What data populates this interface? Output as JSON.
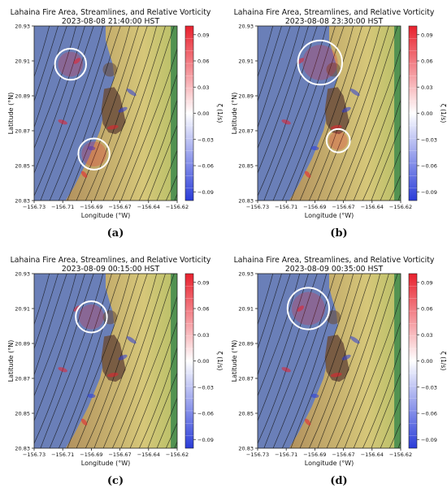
{
  "chart_data": [
    {
      "type": "heatmap",
      "label": "(a)",
      "title": "Lahaina Fire Area, Streamlines, and Relative Vorticity",
      "subtitle": "2023-08-08 21:40:00 HST",
      "xlabel": "Longitude (°W)",
      "ylabel": "Latitude (°N)",
      "colorbar_label": "ζ (1/s)",
      "xticks": [
        "−156.73",
        "−156.71",
        "−156.69",
        "−156.67",
        "−156.64",
        "−156.62"
      ],
      "yticks": [
        "20.93",
        "20.91",
        "20.89",
        "20.87",
        "20.85",
        "20.83"
      ],
      "colorbar_ticks": [
        "0.09",
        "0.06",
        "0.03",
        "0.00",
        "−0.03",
        "−0.06",
        "−0.09"
      ],
      "xlim": [
        -156.73,
        -156.62
      ],
      "ylim": [
        20.83,
        20.935
      ],
      "clim": [
        -0.1,
        0.1
      ],
      "highlight_circles": [
        {
          "lon": -156.702,
          "lat": 20.912,
          "r_lon": 0.012
        },
        {
          "lon": -156.684,
          "lat": 20.858,
          "r_lon": 0.012
        }
      ]
    },
    {
      "type": "heatmap",
      "label": "(b)",
      "title": "Lahaina Fire Area, Streamlines, and Relative Vorticity",
      "subtitle": "2023-08-08 23:30:00 HST",
      "xlabel": "Longitude (°W)",
      "ylabel": "Latitude (°N)",
      "colorbar_label": "ζ (1/s)",
      "xticks": [
        "−156.73",
        "−156.71",
        "−156.69",
        "−156.67",
        "−156.64",
        "−156.62"
      ],
      "yticks": [
        "20.93",
        "20.91",
        "20.89",
        "20.87",
        "20.85",
        "20.83"
      ],
      "colorbar_ticks": [
        "0.09",
        "0.06",
        "0.03",
        "0.00",
        "−0.03",
        "−0.06",
        "−0.09"
      ],
      "xlim": [
        -156.73,
        -156.62
      ],
      "ylim": [
        20.83,
        20.935
      ],
      "clim": [
        -0.1,
        0.1
      ],
      "highlight_circles": [
        {
          "lon": -156.682,
          "lat": 20.913,
          "r_lon": 0.017
        },
        {
          "lon": -156.668,
          "lat": 20.866,
          "r_lon": 0.009
        }
      ]
    },
    {
      "type": "heatmap",
      "label": "(c)",
      "title": "Lahaina Fire Area, Streamlines, and Relative Vorticity",
      "subtitle": "2023-08-09 00:15:00 HST",
      "xlabel": "Longitude (°W)",
      "ylabel": "Latitude (°N)",
      "colorbar_label": "ζ (1/s)",
      "xticks": [
        "−156.73",
        "−156.71",
        "−156.69",
        "−156.67",
        "−156.64",
        "−156.62"
      ],
      "yticks": [
        "20.93",
        "20.91",
        "20.89",
        "20.87",
        "20.85",
        "20.83"
      ],
      "colorbar_ticks": [
        "0.09",
        "0.06",
        "0.03",
        "0.00",
        "−0.03",
        "−0.06",
        "−0.09"
      ],
      "xlim": [
        -156.73,
        -156.62
      ],
      "ylim": [
        20.83,
        20.935
      ],
      "clim": [
        -0.1,
        0.1
      ],
      "highlight_circles": [
        {
          "lon": -156.686,
          "lat": 20.909,
          "r_lon": 0.012
        }
      ]
    },
    {
      "type": "heatmap",
      "label": "(d)",
      "title": "Lahaina Fire Area, Streamlines, and Relative Vorticity",
      "subtitle": "2023-08-09 00:35:00 HST",
      "xlabel": "Longitude (°W)",
      "ylabel": "Latitude (°N)",
      "colorbar_label": "ζ (1/s)",
      "xticks": [
        "−156.73",
        "−156.71",
        "−156.69",
        "−156.67",
        "−156.64",
        "−156.62"
      ],
      "yticks": [
        "20.93",
        "20.91",
        "20.89",
        "20.87",
        "20.85",
        "20.83"
      ],
      "colorbar_ticks": [
        "0.09",
        "0.06",
        "0.03",
        "0.00",
        "−0.03",
        "−0.06",
        "−0.09"
      ],
      "xlim": [
        -156.73,
        -156.62
      ],
      "ylim": [
        20.83,
        20.935
      ],
      "clim": [
        -0.1,
        0.1
      ],
      "highlight_circles": [
        {
          "lon": -156.691,
          "lat": 20.914,
          "r_lon": 0.016
        }
      ]
    }
  ],
  "colors": {
    "ocean": "#6a7fb8",
    "land_low": "#b2915e",
    "land_high": "#d6c779",
    "ridge": "#3f8a4e",
    "burn": "#6b4e3c",
    "vort_pos": "#e8212d",
    "vort_neg": "#2a3cd8",
    "streamline": "#111111",
    "circle": "#ffffff"
  }
}
